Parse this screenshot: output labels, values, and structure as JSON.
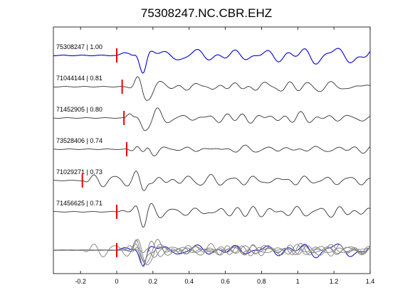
{
  "chart_data": {
    "type": "line",
    "title": "75308247.NC.CBR.EHZ",
    "xlabel": "",
    "ylabel": "",
    "xlim": [
      -0.35,
      1.4
    ],
    "x_ticks": [
      -0.2,
      0,
      0.2,
      0.4,
      0.6,
      0.8,
      1.0,
      1.2,
      1.4
    ],
    "x_tick_labels": [
      "-0.2",
      "0",
      "0.2",
      "0.4",
      "0.6",
      "0.8",
      "1",
      "1.2",
      "1.4"
    ],
    "grid": false,
    "colors": {
      "reference": "#0000cc",
      "trace": "#333333",
      "overlay": "#888888",
      "pick": "#ee0000"
    },
    "traces": [
      {
        "label": "75308247 | 1.00",
        "pick_time": 0.0,
        "reference": true
      },
      {
        "label": "71044144 | 0.81",
        "pick_time": 0.03
      },
      {
        "label": "71452905 | 0.80",
        "pick_time": 0.04
      },
      {
        "label": "73528406 | 0.74",
        "pick_time": 0.055
      },
      {
        "label": "71029271 | 0.73",
        "pick_time": -0.19
      },
      {
        "label": "71456625 | 0.71",
        "pick_time": 0.0
      }
    ]
  }
}
